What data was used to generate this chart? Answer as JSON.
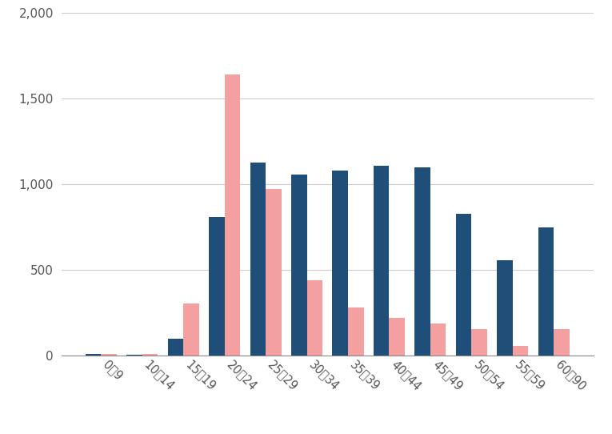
{
  "categories": [
    "0～9",
    "10～14",
    "15～19",
    "20～24",
    "25～29",
    "30～34",
    "35～39",
    "40～44",
    "45～49",
    "50～54",
    "55～59",
    "60～90"
  ],
  "male_values": [
    10,
    5,
    100,
    810,
    1130,
    1060,
    1080,
    1110,
    1100,
    830,
    560,
    750
  ],
  "female_values": [
    10,
    10,
    305,
    1640,
    975,
    440,
    280,
    220,
    190,
    155,
    60,
    155
  ],
  "male_color": "#1f4e79",
  "female_color": "#f4a0a0",
  "background_color": "#ffffff",
  "ylim": [
    0,
    2000
  ],
  "yticks": [
    0,
    500,
    1000,
    1500,
    2000
  ],
  "grid_color": "#cccccc",
  "bar_width": 0.38,
  "figsize": [
    7.65,
    5.42
  ],
  "dpi": 100
}
